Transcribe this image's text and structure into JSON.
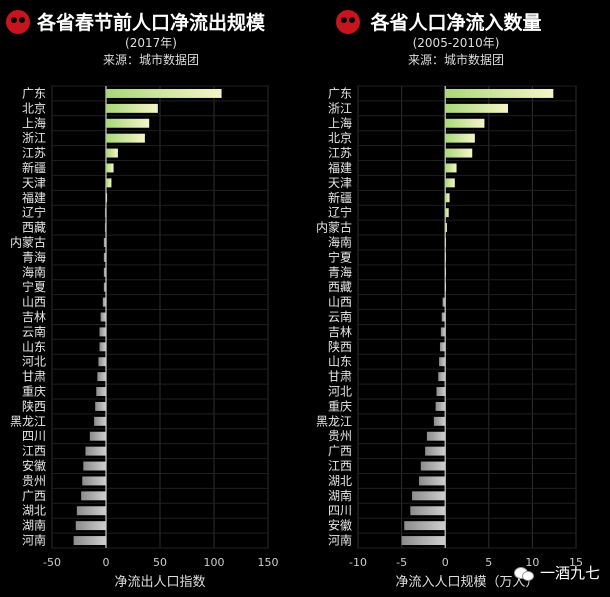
{
  "chart_data": [
    {
      "type": "bar",
      "orientation": "horizontal",
      "title": "各省春节前人口净流出规模",
      "subtitle": "(2017年)",
      "source": "来源：城市数据团",
      "xlabel": "净流出人口指数",
      "xlim": [
        -50,
        150
      ],
      "xticks": [
        "-50",
        "0",
        "50",
        "100",
        "150"
      ],
      "grid": true,
      "categories": [
        "广东",
        "北京",
        "上海",
        "浙江",
        "江苏",
        "新疆",
        "天津",
        "福建",
        "辽宁",
        "西藏",
        "内蒙古",
        "青海",
        "海南",
        "宁夏",
        "山西",
        "吉林",
        "云南",
        "山东",
        "河北",
        "甘肃",
        "重庆",
        "陕西",
        "黑龙江",
        "四川",
        "江西",
        "安徽",
        "贵州",
        "广西",
        "湖北",
        "湖南",
        "河南"
      ],
      "values": [
        107,
        48,
        40,
        36,
        11,
        7,
        5,
        1,
        -1,
        -1,
        -2,
        -2,
        -2,
        -2,
        -3,
        -5,
        -6,
        -6,
        -7,
        -8,
        -9,
        -10,
        -11,
        -15,
        -19,
        -21,
        -22,
        -23,
        -27,
        -28,
        -30
      ]
    },
    {
      "type": "bar",
      "orientation": "horizontal",
      "title": "各省人口净流入数量",
      "subtitle": "(2005-2010年)",
      "source": "来源：城市数据团",
      "xlabel": "净流入人口规模（万人）",
      "xlim": [
        -10,
        15
      ],
      "xticks": [
        "-10",
        "-5",
        "0",
        "5",
        "10",
        "15"
      ],
      "grid": true,
      "categories": [
        "广东",
        "浙江",
        "上海",
        "北京",
        "江苏",
        "福建",
        "天津",
        "新疆",
        "辽宁",
        "内蒙古",
        "海南",
        "宁夏",
        "青海",
        "西藏",
        "山西",
        "云南",
        "吉林",
        "陕西",
        "山东",
        "甘肃",
        "河北",
        "重庆",
        "黑龙江",
        "贵州",
        "广西",
        "江西",
        "湖北",
        "湖南",
        "四川",
        "安徽",
        "河南"
      ],
      "values": [
        12.4,
        7.2,
        4.5,
        3.4,
        3.1,
        1.3,
        1.1,
        0.5,
        0.4,
        0.2,
        0.05,
        0.03,
        0.02,
        0.01,
        -0.3,
        -0.4,
        -0.5,
        -0.6,
        -0.7,
        -0.8,
        -1.0,
        -1.1,
        -1.3,
        -2.1,
        -2.3,
        -2.8,
        -3.0,
        -3.8,
        -4.0,
        -4.7,
        -5.0
      ]
    }
  ],
  "colors": {
    "background": "#000000",
    "bar_top": "#f5f5c8",
    "bar_mid": "#a8d878",
    "bar_neg": "#bdbdbd",
    "grid": "#2e2e2e",
    "axis": "#d0d0d0",
    "logo": "#c8141e"
  },
  "watermark": "一酒九七"
}
